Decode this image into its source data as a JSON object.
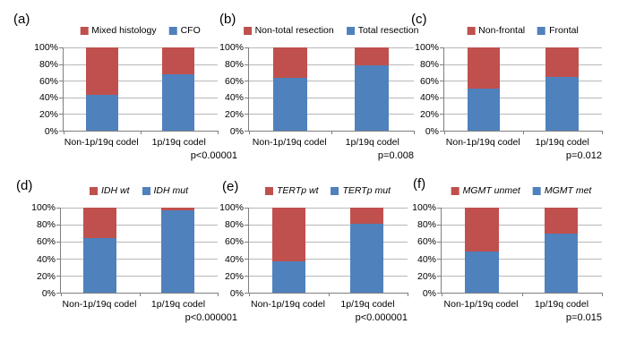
{
  "axis": {
    "y_ticks": [
      "100%",
      "80%",
      "60%",
      "40%",
      "20%",
      "0%"
    ],
    "categories": [
      "Non-1p/19q codel",
      "1p/19q codel"
    ]
  },
  "colors": {
    "red": "#C0504D",
    "blue": "#4F81BD",
    "gridline": "#B8B8B8",
    "axis": "#7F7F7F",
    "background": "#FFFFFF",
    "text": "#000000"
  },
  "panels": [
    {
      "letter": "(a)",
      "legend_italic": false
    },
    {
      "letter": "(b)",
      "legend_italic": false
    },
    {
      "letter": "(c)",
      "legend_italic": false
    },
    {
      "letter": "(d)",
      "legend_italic": true
    },
    {
      "letter": "(e)",
      "legend_italic": true
    },
    {
      "letter": "(f)",
      "legend_italic": true
    }
  ],
  "chart_data": [
    {
      "type": "bar",
      "stacked": true,
      "panel": "a",
      "categories": [
        "Non-1p/19q codel",
        "1p/19q codel"
      ],
      "series": [
        {
          "name": "Mixed histology",
          "color": "#C0504D",
          "values": [
            57,
            32
          ]
        },
        {
          "name": "CFO",
          "color": "#4F81BD",
          "values": [
            43,
            68
          ]
        }
      ],
      "ylim": [
        0,
        100
      ],
      "yticks": [
        "0%",
        "20%",
        "40%",
        "60%",
        "80%",
        "100%"
      ],
      "grid": true,
      "legend_position": "top",
      "p_value": "p<0.00001"
    },
    {
      "type": "bar",
      "stacked": true,
      "panel": "b",
      "categories": [
        "Non-1p/19q codel",
        "1p/19q codel"
      ],
      "series": [
        {
          "name": "Non-total resection",
          "color": "#C0504D",
          "values": [
            37,
            21
          ]
        },
        {
          "name": "Total resection",
          "color": "#4F81BD",
          "values": [
            63,
            79
          ]
        }
      ],
      "ylim": [
        0,
        100
      ],
      "yticks": [
        "0%",
        "20%",
        "40%",
        "60%",
        "80%",
        "100%"
      ],
      "grid": true,
      "legend_position": "top",
      "p_value": "p=0.008"
    },
    {
      "type": "bar",
      "stacked": true,
      "panel": "c",
      "categories": [
        "Non-1p/19q codel",
        "1p/19q codel"
      ],
      "series": [
        {
          "name": "Non-frontal",
          "color": "#C0504D",
          "values": [
            49,
            35
          ]
        },
        {
          "name": "Frontal",
          "color": "#4F81BD",
          "values": [
            51,
            65
          ]
        }
      ],
      "ylim": [
        0,
        100
      ],
      "yticks": [
        "0%",
        "20%",
        "40%",
        "60%",
        "80%",
        "100%"
      ],
      "grid": true,
      "legend_position": "top",
      "p_value": "p=0.012"
    },
    {
      "type": "bar",
      "stacked": true,
      "panel": "d",
      "categories": [
        "Non-1p/19q codel",
        "1p/19q codel"
      ],
      "series": [
        {
          "name": "IDH wt",
          "color": "#C0504D",
          "values": [
            36,
            3
          ]
        },
        {
          "name": "IDH mut",
          "color": "#4F81BD",
          "values": [
            64,
            97
          ]
        }
      ],
      "ylim": [
        0,
        100
      ],
      "yticks": [
        "0%",
        "20%",
        "40%",
        "60%",
        "80%",
        "100%"
      ],
      "grid": true,
      "legend_position": "top",
      "p_value": "p<0.000001"
    },
    {
      "type": "bar",
      "stacked": true,
      "panel": "e",
      "categories": [
        "Non-1p/19q codel",
        "1p/19q codel"
      ],
      "series": [
        {
          "name": "TERTp wt",
          "color": "#C0504D",
          "values": [
            63,
            19
          ]
        },
        {
          "name": "TERTp mut",
          "color": "#4F81BD",
          "values": [
            37,
            81
          ]
        }
      ],
      "ylim": [
        0,
        100
      ],
      "yticks": [
        "0%",
        "20%",
        "40%",
        "60%",
        "80%",
        "100%"
      ],
      "grid": true,
      "legend_position": "top",
      "p_value": "p<0.000001"
    },
    {
      "type": "bar",
      "stacked": true,
      "panel": "f",
      "categories": [
        "Non-1p/19q codel",
        "1p/19q codel"
      ],
      "series": [
        {
          "name": "MGMT unmet",
          "color": "#C0504D",
          "values": [
            52,
            30
          ]
        },
        {
          "name": "MGMT met",
          "color": "#4F81BD",
          "values": [
            48,
            70
          ]
        }
      ],
      "ylim": [
        0,
        100
      ],
      "yticks": [
        "0%",
        "20%",
        "40%",
        "60%",
        "80%",
        "100%"
      ],
      "grid": true,
      "legend_position": "top",
      "p_value": "p=0.015"
    }
  ]
}
